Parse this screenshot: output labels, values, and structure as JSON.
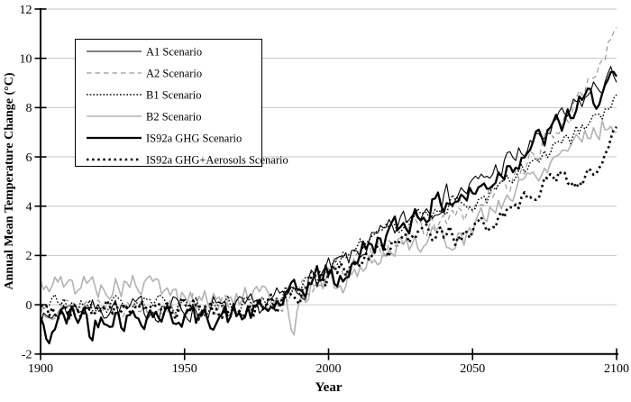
{
  "figure": {
    "background": "#ffffff"
  },
  "chart_data": {
    "type": "line",
    "title": "",
    "xlabel": "Year",
    "ylabel": "Annual Mean Temperature Change (°C)",
    "xlim": [
      1900,
      2100
    ],
    "ylim": [
      -2,
      12
    ],
    "x_ticks": [
      1900,
      1950,
      2000,
      2050,
      2100
    ],
    "y_ticks": [
      -2,
      0,
      2,
      4,
      6,
      8,
      10,
      12
    ],
    "gridlines_at": [
      0,
      2,
      4,
      6,
      8,
      10,
      12
    ],
    "grid_on": true,
    "grid_color": "#c6c6c6",
    "axis_color": "#000000",
    "legend_position": "top-left",
    "legend": {
      "border_color": "#000000",
      "background": "#ffffff"
    },
    "draw_order": [
      3,
      1,
      2,
      5,
      0,
      4
    ],
    "series": [
      {
        "name": "A1 Scenario",
        "color": "#000000",
        "width": 1.1,
        "dash": "solid",
        "noise_amp": 0.42,
        "seed": 7,
        "anchors": [
          [
            1900,
            -0.3
          ],
          [
            1902,
            -0.8
          ],
          [
            1905,
            -0.3
          ],
          [
            1910,
            -0.2
          ],
          [
            1915,
            0.0
          ],
          [
            1920,
            -0.2
          ],
          [
            1925,
            0.0
          ],
          [
            1930,
            -0.3
          ],
          [
            1935,
            -0.1
          ],
          [
            1940,
            -0.2
          ],
          [
            1945,
            0.0
          ],
          [
            1950,
            -0.2
          ],
          [
            1955,
            -0.3
          ],
          [
            1960,
            -0.1
          ],
          [
            1965,
            -0.3
          ],
          [
            1970,
            -0.2
          ],
          [
            1975,
            -0.1
          ],
          [
            1980,
            0.1
          ],
          [
            1985,
            0.3
          ],
          [
            1990,
            0.7
          ],
          [
            1995,
            1.0
          ],
          [
            2000,
            1.4
          ],
          [
            2005,
            1.7
          ],
          [
            2010,
            2.1
          ],
          [
            2015,
            2.5
          ],
          [
            2020,
            2.9
          ],
          [
            2025,
            3.3
          ],
          [
            2030,
            3.7
          ],
          [
            2035,
            4.0
          ],
          [
            2040,
            4.3
          ],
          [
            2045,
            4.5
          ],
          [
            2050,
            4.8
          ],
          [
            2055,
            5.2
          ],
          [
            2060,
            5.6
          ],
          [
            2065,
            6.0
          ],
          [
            2070,
            6.4
          ],
          [
            2075,
            6.9
          ],
          [
            2080,
            7.4
          ],
          [
            2085,
            7.9
          ],
          [
            2090,
            8.5
          ],
          [
            2095,
            9.0
          ],
          [
            2100,
            9.3
          ]
        ]
      },
      {
        "name": "A2 Scenario",
        "color": "#989898",
        "width": 1.2,
        "dash": "dashed",
        "noise_amp": 0.38,
        "seed": 13,
        "anchors": [
          [
            1900,
            0.0
          ],
          [
            1910,
            -0.1
          ],
          [
            1920,
            0.1
          ],
          [
            1930,
            -0.1
          ],
          [
            1940,
            0.0
          ],
          [
            1950,
            -0.1
          ],
          [
            1960,
            0.0
          ],
          [
            1970,
            -0.2
          ],
          [
            1980,
            0.0
          ],
          [
            1990,
            0.5
          ],
          [
            1995,
            0.8
          ],
          [
            2000,
            1.2
          ],
          [
            2010,
            1.9
          ],
          [
            2020,
            2.5
          ],
          [
            2030,
            3.0
          ],
          [
            2040,
            3.4
          ],
          [
            2050,
            3.8
          ],
          [
            2060,
            4.7
          ],
          [
            2070,
            5.8
          ],
          [
            2080,
            7.2
          ],
          [
            2085,
            8.0
          ],
          [
            2090,
            9.0
          ],
          [
            2095,
            10.0
          ],
          [
            2098,
            10.6
          ],
          [
            2100,
            10.9
          ]
        ]
      },
      {
        "name": "B1 Scenario",
        "color": "#000000",
        "width": 1.4,
        "dash": "dotted",
        "noise_amp": 0.32,
        "seed": 21,
        "anchors": [
          [
            1900,
            0.0
          ],
          [
            1910,
            0.1
          ],
          [
            1920,
            -0.1
          ],
          [
            1930,
            0.1
          ],
          [
            1940,
            0.0
          ],
          [
            1950,
            0.1
          ],
          [
            1960,
            -0.1
          ],
          [
            1970,
            0.0
          ],
          [
            1980,
            0.2
          ],
          [
            1990,
            0.7
          ],
          [
            2000,
            1.5
          ],
          [
            2010,
            2.3
          ],
          [
            2020,
            3.0
          ],
          [
            2030,
            3.6
          ],
          [
            2040,
            4.0
          ],
          [
            2050,
            4.1
          ],
          [
            2055,
            4.4
          ],
          [
            2060,
            4.8
          ],
          [
            2070,
            5.6
          ],
          [
            2080,
            6.4
          ],
          [
            2090,
            7.3
          ],
          [
            2100,
            8.2
          ]
        ]
      },
      {
        "name": "B2 Scenario",
        "color": "#b2b2b2",
        "width": 1.6,
        "dash": "solid",
        "noise_amp": 0.42,
        "seed": 5,
        "anchors": [
          [
            1900,
            0.7
          ],
          [
            1905,
            0.9
          ],
          [
            1910,
            0.7
          ],
          [
            1915,
            0.9
          ],
          [
            1920,
            0.8
          ],
          [
            1925,
            0.6
          ],
          [
            1930,
            0.9
          ],
          [
            1935,
            0.7
          ],
          [
            1940,
            0.8
          ],
          [
            1945,
            0.5
          ],
          [
            1950,
            0.3
          ],
          [
            1955,
            0.2
          ],
          [
            1960,
            0.3
          ],
          [
            1965,
            0.2
          ],
          [
            1970,
            0.2
          ],
          [
            1975,
            0.3
          ],
          [
            1980,
            0.4
          ],
          [
            1985,
            0.3
          ],
          [
            1988,
            -0.9
          ],
          [
            1991,
            0.4
          ],
          [
            1995,
            0.7
          ],
          [
            2000,
            1.0
          ],
          [
            2005,
            0.9
          ],
          [
            2010,
            1.4
          ],
          [
            2015,
            1.8
          ],
          [
            2020,
            2.1
          ],
          [
            2025,
            2.4
          ],
          [
            2030,
            2.6
          ],
          [
            2035,
            2.7
          ],
          [
            2040,
            2.8
          ],
          [
            2045,
            2.7
          ],
          [
            2050,
            3.0
          ],
          [
            2055,
            3.7
          ],
          [
            2060,
            4.2
          ],
          [
            2065,
            4.6
          ],
          [
            2070,
            5.3
          ],
          [
            2075,
            5.6
          ],
          [
            2080,
            6.2
          ],
          [
            2085,
            6.7
          ],
          [
            2090,
            7.0
          ],
          [
            2095,
            7.2
          ],
          [
            2100,
            7.4
          ]
        ]
      },
      {
        "name": "IS92a GHG Scenario",
        "color": "#000000",
        "width": 2.3,
        "dash": "solid",
        "noise_amp": 0.45,
        "seed": 42,
        "anchors": [
          [
            1900,
            -0.5
          ],
          [
            1902,
            -1.7
          ],
          [
            1904,
            -1.0
          ],
          [
            1906,
            -0.6
          ],
          [
            1910,
            -0.5
          ],
          [
            1915,
            -0.3
          ],
          [
            1918,
            -1.2
          ],
          [
            1921,
            -0.4
          ],
          [
            1925,
            -0.4
          ],
          [
            1930,
            -0.6
          ],
          [
            1935,
            -0.4
          ],
          [
            1940,
            -0.3
          ],
          [
            1945,
            -0.5
          ],
          [
            1950,
            -0.4
          ],
          [
            1955,
            -0.6
          ],
          [
            1960,
            -0.4
          ],
          [
            1965,
            -0.5
          ],
          [
            1970,
            -0.4
          ],
          [
            1975,
            -0.3
          ],
          [
            1980,
            -0.1
          ],
          [
            1985,
            0.2
          ],
          [
            1990,
            0.6
          ],
          [
            1995,
            1.0
          ],
          [
            2000,
            1.4
          ],
          [
            2003,
            0.7
          ],
          [
            2006,
            1.3
          ],
          [
            2010,
            2.0
          ],
          [
            2015,
            2.4
          ],
          [
            2020,
            2.8
          ],
          [
            2025,
            3.2
          ],
          [
            2030,
            3.6
          ],
          [
            2035,
            3.9
          ],
          [
            2040,
            4.2
          ],
          [
            2045,
            4.3
          ],
          [
            2050,
            4.5
          ],
          [
            2055,
            4.9
          ],
          [
            2060,
            5.4
          ],
          [
            2065,
            5.9
          ],
          [
            2070,
            6.4
          ],
          [
            2075,
            6.8
          ],
          [
            2080,
            7.3
          ],
          [
            2085,
            7.8
          ],
          [
            2090,
            8.3
          ],
          [
            2095,
            8.7
          ],
          [
            2100,
            9.0
          ]
        ]
      },
      {
        "name": "IS92a GHG+Aerosols Scenario",
        "color": "#000000",
        "width": 2.6,
        "dash": "dotted-heavy",
        "noise_amp": 0.35,
        "seed": 99,
        "anchors": [
          [
            1900,
            -0.2
          ],
          [
            1910,
            -0.1
          ],
          [
            1920,
            -0.3
          ],
          [
            1930,
            -0.1
          ],
          [
            1940,
            -0.2
          ],
          [
            1950,
            -0.1
          ],
          [
            1960,
            -0.2
          ],
          [
            1970,
            -0.3
          ],
          [
            1980,
            0.0
          ],
          [
            1990,
            0.5
          ],
          [
            2000,
            1.2
          ],
          [
            2010,
            1.8
          ],
          [
            2020,
            2.3
          ],
          [
            2030,
            2.7
          ],
          [
            2040,
            2.9
          ],
          [
            2045,
            2.8
          ],
          [
            2050,
            2.8
          ],
          [
            2055,
            3.3
          ],
          [
            2060,
            3.7
          ],
          [
            2065,
            4.1
          ],
          [
            2070,
            4.6
          ],
          [
            2075,
            4.9
          ],
          [
            2080,
            5.2
          ],
          [
            2085,
            4.9
          ],
          [
            2090,
            5.3
          ],
          [
            2094,
            5.6
          ],
          [
            2097,
            6.2
          ],
          [
            2100,
            7.0
          ]
        ]
      }
    ]
  }
}
